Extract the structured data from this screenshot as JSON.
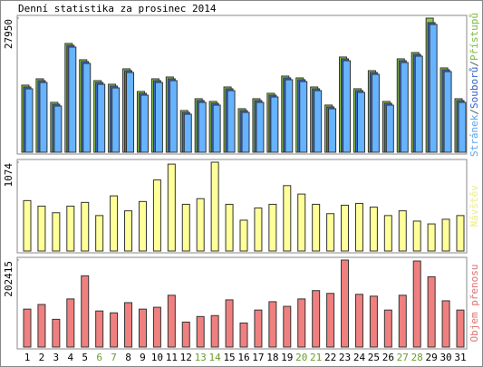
{
  "title": "Denní statistika za prosinec 2014",
  "chart_data": [
    {
      "type": "bar3",
      "yticks": [
        27950
      ],
      "ylim": [
        0,
        27950
      ],
      "legend_separator": "/",
      "series": [
        {
          "name": "Stránek",
          "color": "#66b3ff",
          "values": [
            13220,
            14540,
            9630,
            21910,
            18510,
            14160,
            13410,
            16620,
            11900,
            14540,
            14920,
            7930,
            10390,
            9820,
            12840,
            8310,
            10390,
            11520,
            15110,
            14730,
            12840,
            9070,
            19080,
            12470,
            16240,
            9820,
            18700,
            20020,
            26630,
            16810,
            10390
          ]
        },
        {
          "name": "Souborů",
          "color": "#3a6fd8",
          "values": [
            13600,
            14920,
            10010,
            22290,
            18890,
            14540,
            13790,
            17000,
            12280,
            14920,
            15300,
            8310,
            10770,
            10200,
            13220,
            8690,
            10770,
            11900,
            15490,
            15110,
            13220,
            9450,
            19460,
            12850,
            16620,
            10200,
            19080,
            20400,
            27010,
            17190,
            10770
          ]
        },
        {
          "name": "Přístupů",
          "color": "#8acb4a",
          "values": [
            13980,
            15300,
            10390,
            22670,
            19270,
            14920,
            14170,
            17380,
            12660,
            15300,
            15680,
            8690,
            11150,
            10580,
            13600,
            9070,
            11150,
            12280,
            15870,
            15490,
            13600,
            9830,
            19840,
            13230,
            17000,
            10580,
            19460,
            20780,
            27950,
            17570,
            11150
          ]
        }
      ]
    },
    {
      "type": "bar",
      "yticks": [
        1074
      ],
      "ylim": [
        0,
        1074
      ],
      "series": [
        {
          "name": "Návštěv",
          "color": "#ffff99",
          "values": [
            610,
            543,
            463,
            543,
            588,
            429,
            667,
            486,
            599,
            859,
            1051,
            565,
            633,
            1074,
            565,
            373,
            520,
            565,
            791,
            689,
            565,
            452,
            554,
            576,
            531,
            429,
            486,
            362,
            328,
            384,
            429
          ]
        }
      ]
    },
    {
      "type": "bar",
      "yticks": [
        202415
      ],
      "ylim": [
        0,
        202415
      ],
      "series": [
        {
          "name": "Objem přenosu",
          "color": "#f08080",
          "values": [
            88280,
            99040,
            64590,
            111960,
            165780,
            83970,
            79660,
            103340,
            88280,
            92580,
            120570,
            58130,
            71050,
            73200,
            109800,
            55980,
            86120,
            105500,
            94730,
            111960,
            131330,
            124870,
            202415,
            122720,
            118420,
            86120,
            120570,
            200230,
            163630,
            107650,
            86120
          ]
        }
      ],
      "categories": [
        "1",
        "2",
        "3",
        "4",
        "5",
        "6",
        "7",
        "8",
        "9",
        "10",
        "11",
        "12",
        "13",
        "14",
        "15",
        "16",
        "17",
        "18",
        "19",
        "20",
        "21",
        "22",
        "23",
        "24",
        "25",
        "26",
        "27",
        "28",
        "29",
        "30",
        "31"
      ],
      "category_colors": [
        "#000",
        "#000",
        "#000",
        "#000",
        "#000",
        "#6a9e2a",
        "#6a9e2a",
        "#000",
        "#000",
        "#000",
        "#000",
        "#000",
        "#6a9e2a",
        "#6a9e2a",
        "#000",
        "#000",
        "#000",
        "#000",
        "#000",
        "#6a9e2a",
        "#6a9e2a",
        "#000",
        "#000",
        "#000",
        "#000",
        "#000",
        "#6a9e2a",
        "#6a9e2a",
        "#000",
        "#000",
        "#000"
      ]
    }
  ]
}
